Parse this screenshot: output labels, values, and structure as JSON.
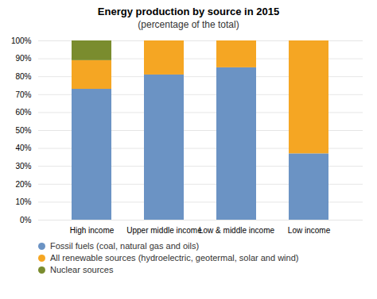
{
  "chart_data": {
    "type": "bar",
    "stacked": true,
    "title": "Energy production by source in 2015",
    "subtitle": "(percentage of the total)",
    "categories": [
      "High income",
      "Upper middle income",
      "Low & middle income",
      "Low income"
    ],
    "series": [
      {
        "name": "Fossil fuels (coal, natural gas and oils)",
        "color": "#6B93C4",
        "values": [
          73,
          81,
          85,
          37
        ]
      },
      {
        "name": "All renewable sources (hydroelectric, geotermal, solar and wind)",
        "color": "#F5A623",
        "values": [
          16,
          19,
          15,
          63
        ]
      },
      {
        "name": "Nuclear sources",
        "color": "#7A8C2E",
        "values": [
          11,
          0,
          0,
          0
        ]
      }
    ],
    "ylim": [
      0,
      100
    ],
    "yticks": [
      {
        "value": 0,
        "label": "0%"
      },
      {
        "value": 10,
        "label": "10%"
      },
      {
        "value": 20,
        "label": "20%"
      },
      {
        "value": 30,
        "label": "30%"
      },
      {
        "value": 40,
        "label": "40%"
      },
      {
        "value": 50,
        "label": "50%"
      },
      {
        "value": 60,
        "label": "60%"
      },
      {
        "value": 70,
        "label": "70%"
      },
      {
        "value": 80,
        "label": "80%"
      },
      {
        "value": 90,
        "label": "90%"
      },
      {
        "value": 100,
        "label": "100%"
      }
    ],
    "grid": true,
    "legend": "bottom"
  }
}
